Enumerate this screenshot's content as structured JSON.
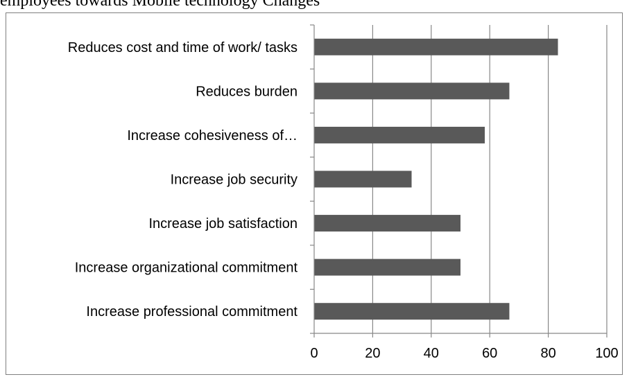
{
  "page_header": {
    "caption_fragment": "employees towards Mobile technology Changes"
  },
  "chart_data": {
    "type": "bar",
    "orientation": "horizontal",
    "categories": [
      "Reduces cost and time of work/ tasks",
      "Reduces burden",
      "Increase cohesiveness of…",
      "Increase job security",
      "Increase job satisfaction",
      "Increase organizational commitment",
      "Increase professional commitment"
    ],
    "values": [
      83.3,
      66.7,
      58.3,
      33.3,
      50,
      50,
      66.7
    ],
    "xlim": [
      0,
      100
    ],
    "xticks": [
      0,
      20,
      40,
      60,
      80,
      100
    ],
    "title": "",
    "xlabel": "",
    "ylabel": "",
    "grid": "vertical",
    "legend": "none",
    "bar_color": "#595959",
    "grid_color": "#878787"
  }
}
